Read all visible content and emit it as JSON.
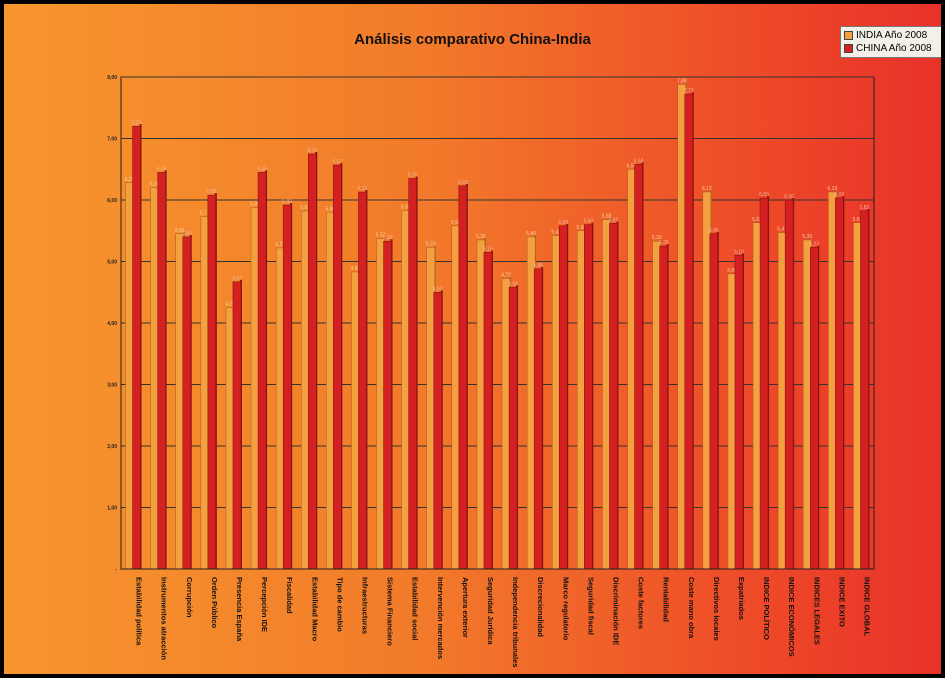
{
  "chart_data": {
    "type": "bar",
    "title": "Análisis comparativo China-India",
    "ylim": [
      0,
      8
    ],
    "yticks": [
      "-",
      "1,00",
      "2,00",
      "3,00",
      "4,00",
      "5,00",
      "6,00",
      "7,00",
      "8,00"
    ],
    "grid": true,
    "legend_position": "top-right",
    "categories": [
      "Estabilidad política",
      "Instrumentos atracción",
      "Corrupción",
      "Orden Público",
      "Presencia España",
      "Percepción IDE",
      "Fiscalidad",
      "Estabilidad Macro",
      "Tipo de cambio",
      "Infraestructuras",
      "Sistema Financiero",
      "Estabilidad social",
      "Intervención mercados",
      "Apertura exterior",
      "Seguridad Jurídica",
      "Independencia tribunales",
      "Discrecionalidad",
      "Marco regulatorio",
      "Seguridad fiscal",
      "Discriminación IDE",
      "Coste factores",
      "Rentabilidad",
      "Coste mano obra",
      "Directivos locales",
      "Expatriados",
      "INDICE POLÍTICO",
      "INDICE ECONÓMICOS",
      "INDICES LEGALES",
      "INDICE EXITO",
      "INDICE GLOBAL"
    ],
    "series": [
      {
        "name": "INDIA Año 2008",
        "color": "#f4a040",
        "values": [
          6.28,
          6.2,
          5.45,
          5.73,
          4.25,
          5.88,
          5.22,
          5.82,
          5.8,
          4.83,
          5.37,
          5.83,
          5.23,
          5.58,
          5.35,
          4.72,
          5.4,
          5.42,
          5.5,
          5.68,
          6.5,
          5.33,
          7.88,
          6.13,
          4.8,
          5.63,
          5.47,
          5.35,
          6.13,
          5.63
        ]
      },
      {
        "name": "CHINA Año 2008",
        "color": "#d42020",
        "values": [
          7.2,
          6.45,
          5.4,
          6.08,
          4.67,
          6.45,
          5.92,
          6.75,
          6.57,
          6.13,
          5.33,
          6.35,
          4.5,
          6.23,
          5.15,
          4.58,
          4.88,
          5.58,
          5.6,
          5.62,
          6.58,
          5.25,
          7.72,
          5.45,
          5.1,
          6.03,
          6.0,
          5.23,
          6.03,
          5.82
        ]
      }
    ]
  },
  "legend": {
    "items": [
      {
        "label": "INDIA Año 2008",
        "color": "#f4a040"
      },
      {
        "label": "CHINA Año 2008",
        "color": "#d42020"
      }
    ]
  }
}
